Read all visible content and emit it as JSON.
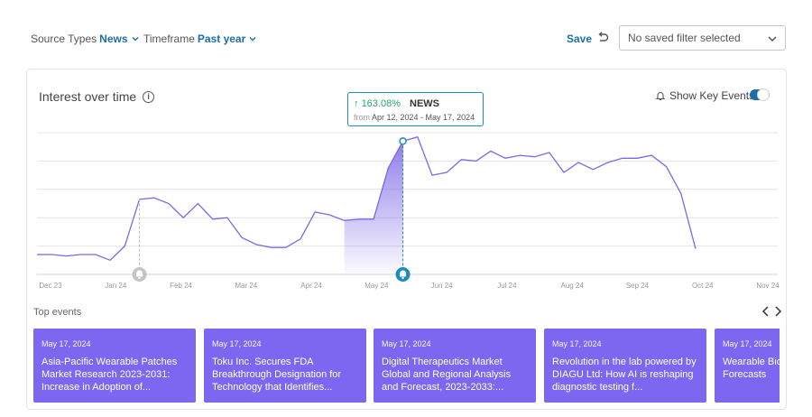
{
  "toolbar": {
    "source_label": "Source Types",
    "source_value": "News",
    "timeframe_label": "Timeframe",
    "timeframe_value": "Past year",
    "save_label": "Save",
    "saved_filter_placeholder": "No saved filter selected"
  },
  "card": {
    "title": "Interest over time",
    "info_icon": "i",
    "key_events_label": "Show Key Events",
    "key_events_on": true
  },
  "tooltip": {
    "change": "163.08%",
    "source": "NEWS",
    "from_label": "from",
    "range": "Apr 12, 2024 - May 17, 2024"
  },
  "colors": {
    "accent": "#1a6fa8",
    "line": "#7c68e8",
    "event_card": "#7d66f0",
    "positive": "#2aa36b"
  },
  "chart_data": {
    "type": "area",
    "x_tick_labels": [
      "Dec 23",
      "Jan 24",
      "Feb 24",
      "Mar 24",
      "Apr 24",
      "May 24",
      "Jun 24",
      "Jul 24",
      "Aug 24",
      "Sep 24",
      "Oct 24",
      "Nov 24"
    ],
    "ylim": [
      0,
      100
    ],
    "grid": true,
    "values": [
      14,
      14,
      13,
      14,
      14,
      10,
      20,
      53,
      54,
      50,
      40,
      50,
      39,
      40,
      26,
      21,
      19,
      19,
      25,
      44,
      42,
      38,
      39,
      39,
      75,
      94,
      97,
      70,
      72,
      81,
      80,
      87,
      82,
      84,
      83,
      86,
      72,
      79,
      74,
      79,
      82,
      82,
      84,
      76,
      57,
      18
    ],
    "highlight_range": [
      21,
      25
    ],
    "key_event_indices": [
      7,
      25
    ]
  },
  "top_events": {
    "label": "Top events",
    "items": [
      {
        "date": "May 17, 2024",
        "title": "Asia-Pacific Wearable Patches Market Research 2023-2031: Increase in Adoption of..."
      },
      {
        "date": "May 17, 2024",
        "title": "Toku Inc. Secures FDA Breakthrough Designation for Technology that Identifies..."
      },
      {
        "date": "May 17, 2024",
        "title": "Digital Therapeutics Market Global and Regional Analysis and Forecast, 2023-2033:..."
      },
      {
        "date": "May 17, 2024",
        "title": "Revolution in the lab powered by DIAGU Ltd: How AI is reshaping diagnostic testing f..."
      },
      {
        "date": "May 17, 2024",
        "title": "Wearable Bio Wearable Pa Forecasts"
      }
    ]
  }
}
